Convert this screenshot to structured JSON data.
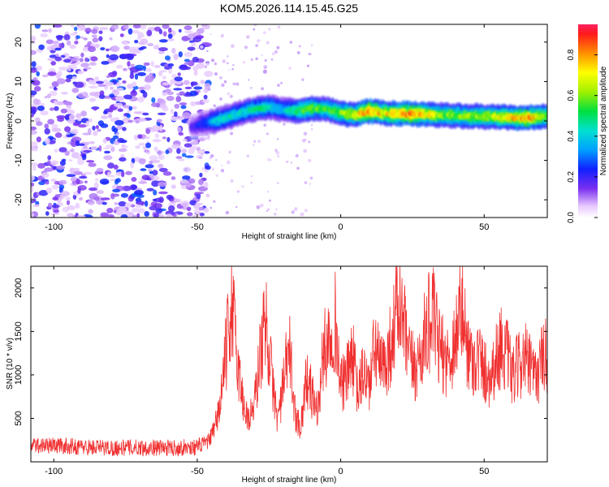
{
  "title": "KOM5.2026.114.15.45.G25",
  "chart_data": [
    {
      "type": "heatmap",
      "xlabel": "Height of straight line (km)",
      "ylabel": "Frequency (Hz)",
      "xlim": [
        -108,
        72
      ],
      "ylim": [
        -24.5,
        24.5
      ],
      "xticks": [
        -100,
        -50,
        0,
        50
      ],
      "yticks": [
        -20,
        -10,
        0,
        10,
        20
      ],
      "colorbar": {
        "label": "Normalized spectral amplitude",
        "range": [
          0,
          0.95
        ],
        "ticks": [
          0.0,
          0.2,
          0.4,
          0.6,
          0.8
        ],
        "tick_labels": [
          "0.0",
          "0.2",
          "0.4",
          "0.6",
          "0.8"
        ]
      },
      "noise_region": {
        "x_from": -108,
        "x_to": -50,
        "amplitude": [
          0.05,
          0.3
        ]
      },
      "ridge": [
        {
          "x": -52,
          "freq": -1.5,
          "amp": 0.18
        },
        {
          "x": -47,
          "freq": -0.5,
          "amp": 0.28
        },
        {
          "x": -44,
          "freq": 0.0,
          "amp": 0.4
        },
        {
          "x": -40,
          "freq": 0.8,
          "amp": 0.45
        },
        {
          "x": -35,
          "freq": 2.0,
          "amp": 0.42
        },
        {
          "x": -30,
          "freq": 3.0,
          "amp": 0.48
        },
        {
          "x": -25,
          "freq": 3.5,
          "amp": 0.46
        },
        {
          "x": -20,
          "freq": 2.8,
          "amp": 0.4
        },
        {
          "x": -15,
          "freq": 2.6,
          "amp": 0.55
        },
        {
          "x": -10,
          "freq": 3.2,
          "amp": 0.6
        },
        {
          "x": -5,
          "freq": 3.0,
          "amp": 0.55
        },
        {
          "x": 0,
          "freq": 2.0,
          "amp": 0.62
        },
        {
          "x": 5,
          "freq": 1.5,
          "amp": 0.7
        },
        {
          "x": 10,
          "freq": 2.5,
          "amp": 0.9
        },
        {
          "x": 15,
          "freq": 2.0,
          "amp": 0.72
        },
        {
          "x": 20,
          "freq": 1.8,
          "amp": 0.82
        },
        {
          "x": 25,
          "freq": 1.8,
          "amp": 0.86
        },
        {
          "x": 35,
          "freq": 1.5,
          "amp": 0.62
        },
        {
          "x": 45,
          "freq": 1.2,
          "amp": 0.65
        },
        {
          "x": 55,
          "freq": 1.0,
          "amp": 0.68
        },
        {
          "x": 65,
          "freq": 0.8,
          "amp": 0.85
        },
        {
          "x": 72,
          "freq": 1.2,
          "amp": 0.62
        }
      ]
    },
    {
      "type": "line",
      "xlabel": "Height of straight line (km)",
      "ylabel": "SNR (10 * v/v)",
      "xlim": [
        -108,
        72
      ],
      "ylim": [
        0,
        2250
      ],
      "xticks": [
        -100,
        -50,
        0,
        50
      ],
      "yticks": [
        500,
        1000,
        1500,
        2000
      ],
      "color": "#f03030",
      "series": [
        {
          "x": [
            -108,
            -100,
            -90,
            -80,
            -70,
            -60,
            -50,
            -46,
            -44,
            -42,
            -40,
            -38,
            -36,
            -34,
            -32,
            -30,
            -28,
            -26,
            -24,
            -22,
            -20,
            -18,
            -16,
            -14,
            -12,
            -10,
            -8,
            -6,
            -4,
            -2,
            0,
            2,
            4,
            6,
            8,
            10,
            12,
            14,
            16,
            18,
            20,
            22,
            24,
            26,
            28,
            30,
            32,
            34,
            36,
            38,
            40,
            42,
            44,
            46,
            48,
            50,
            52,
            54,
            56,
            58,
            60,
            62,
            64,
            66,
            68,
            70,
            72
          ],
          "values": [
            200,
            200,
            180,
            170,
            175,
            170,
            180,
            250,
            380,
            700,
            1300,
            1900,
            1200,
            700,
            500,
            700,
            1300,
            1700,
            1000,
            500,
            900,
            1400,
            600,
            400,
            1000,
            800,
            600,
            1300,
            1500,
            1700,
            900,
            1000,
            1300,
            800,
            1100,
            900,
            1400,
            1100,
            1200,
            1500,
            1900,
            1600,
            1200,
            1100,
            1300,
            1600,
            1750,
            1400,
            1250,
            1200,
            1500,
            1850,
            1400,
            1200,
            1250,
            1100,
            1000,
            1200,
            1400,
            1250,
            1000,
            1150,
            1250,
            1100,
            1000,
            1200,
            1300
          ]
        }
      ]
    }
  ]
}
